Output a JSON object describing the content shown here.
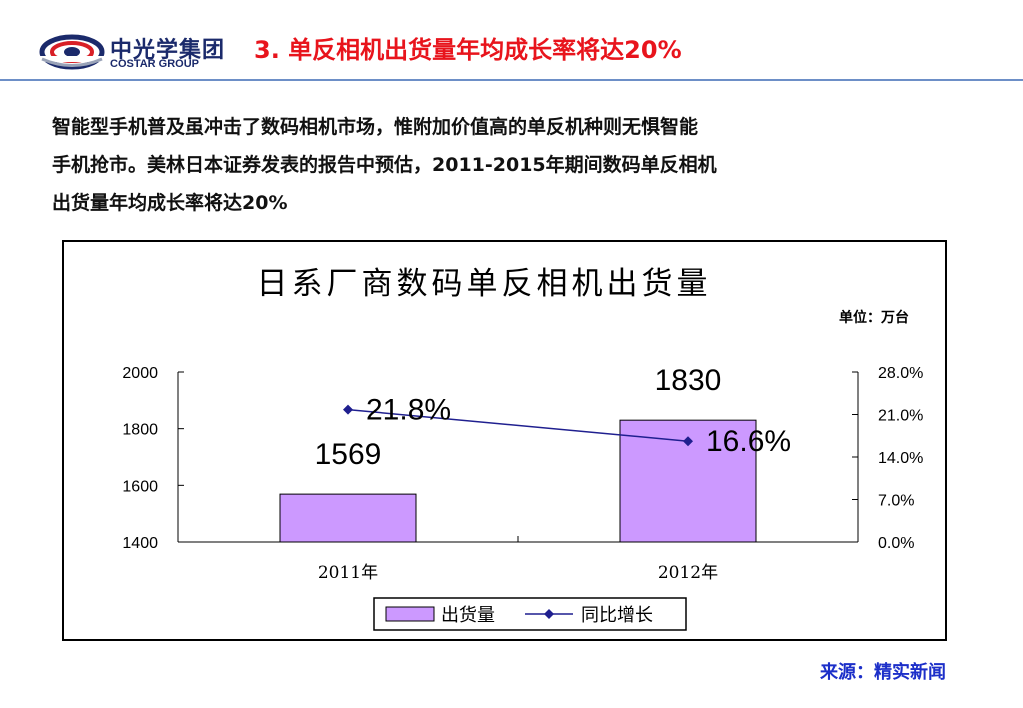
{
  "header": {
    "logo_cn": "中光学集团",
    "logo_en": "COSTAR GROUP",
    "title": "3. 单反相机出货量年均成长率将达20%"
  },
  "body": {
    "lines": [
      "智能型手机普及虽冲击了数码相机市场，惟附加价值高的单反机种则无惧智能",
      "手机抢市。美林日本证券发表的报告中预估，2011-2015年期间数码单反相机",
      "出货量年均成长率将达20%"
    ]
  },
  "chart_data": {
    "type": "bar",
    "title": "日系厂商数码单反相机出货量",
    "unit_note": "单位：万台",
    "categories": [
      "2011年",
      "2012年"
    ],
    "series": [
      {
        "name": "出货量",
        "type": "bar",
        "axis": "left",
        "values": [
          1569,
          1830
        ],
        "labels": [
          "1569",
          "1830"
        ],
        "color": "#cc99ff"
      },
      {
        "name": "同比增长",
        "type": "line",
        "axis": "right",
        "values": [
          21.8,
          16.6
        ],
        "labels": [
          "21.8%",
          "16.6%"
        ],
        "color": "#1f1f8f"
      }
    ],
    "y_left": {
      "min": 1400,
      "max": 2000,
      "ticks": [
        2000,
        1800,
        1600,
        1400
      ],
      "tick_labels": [
        "2000",
        "1800",
        "1600",
        "1400"
      ]
    },
    "y_right": {
      "min": 0,
      "max": 28,
      "ticks": [
        28,
        21,
        14,
        7,
        0
      ],
      "tick_labels": [
        "28.0%",
        "21.0%",
        "14.0%",
        "7.0%",
        "0.0%"
      ]
    },
    "grid": false,
    "legend": "bottom"
  },
  "footer": {
    "source": "来源：精实新闻"
  }
}
